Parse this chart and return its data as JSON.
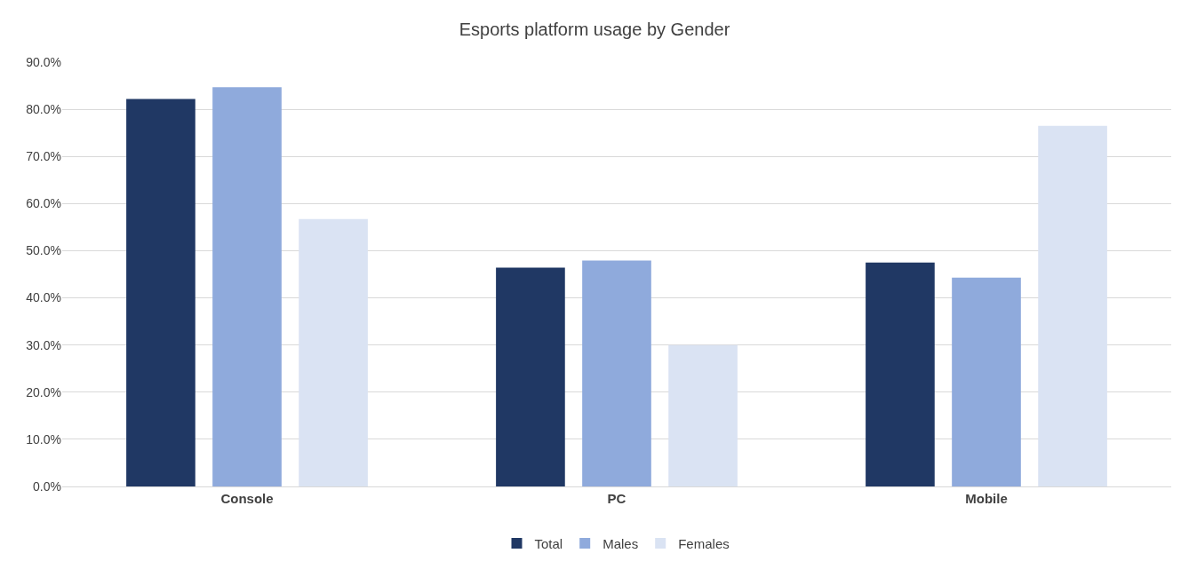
{
  "chart_data": {
    "type": "bar",
    "title": "Esports platform usage by Gender",
    "categories": [
      "Console",
      "PC",
      "Mobile"
    ],
    "series": [
      {
        "name": "Total",
        "color": "#203864",
        "values": [
          82.2,
          46.4,
          47.5
        ]
      },
      {
        "name": "Males",
        "color": "#8faadc",
        "values": [
          84.7,
          47.9,
          44.3
        ]
      },
      {
        "name": "Females",
        "color": "#dae3f3",
        "values": [
          56.7,
          30.0,
          76.5
        ]
      }
    ],
    "ylim": [
      0,
      90
    ],
    "yticks": [
      {
        "value": 0,
        "label": "0.0%"
      },
      {
        "value": 10,
        "label": "10.0%"
      },
      {
        "value": 20,
        "label": "20.0%"
      },
      {
        "value": 30,
        "label": "30.0%"
      },
      {
        "value": 40,
        "label": "40.0%"
      },
      {
        "value": 50,
        "label": "50.0%"
      },
      {
        "value": 60,
        "label": "60.0%"
      },
      {
        "value": 70,
        "label": "70.0%"
      },
      {
        "value": 80,
        "label": "80.0%"
      },
      {
        "value": 90,
        "label": "90.0%"
      }
    ],
    "grid": "y",
    "legend": "bottom"
  }
}
